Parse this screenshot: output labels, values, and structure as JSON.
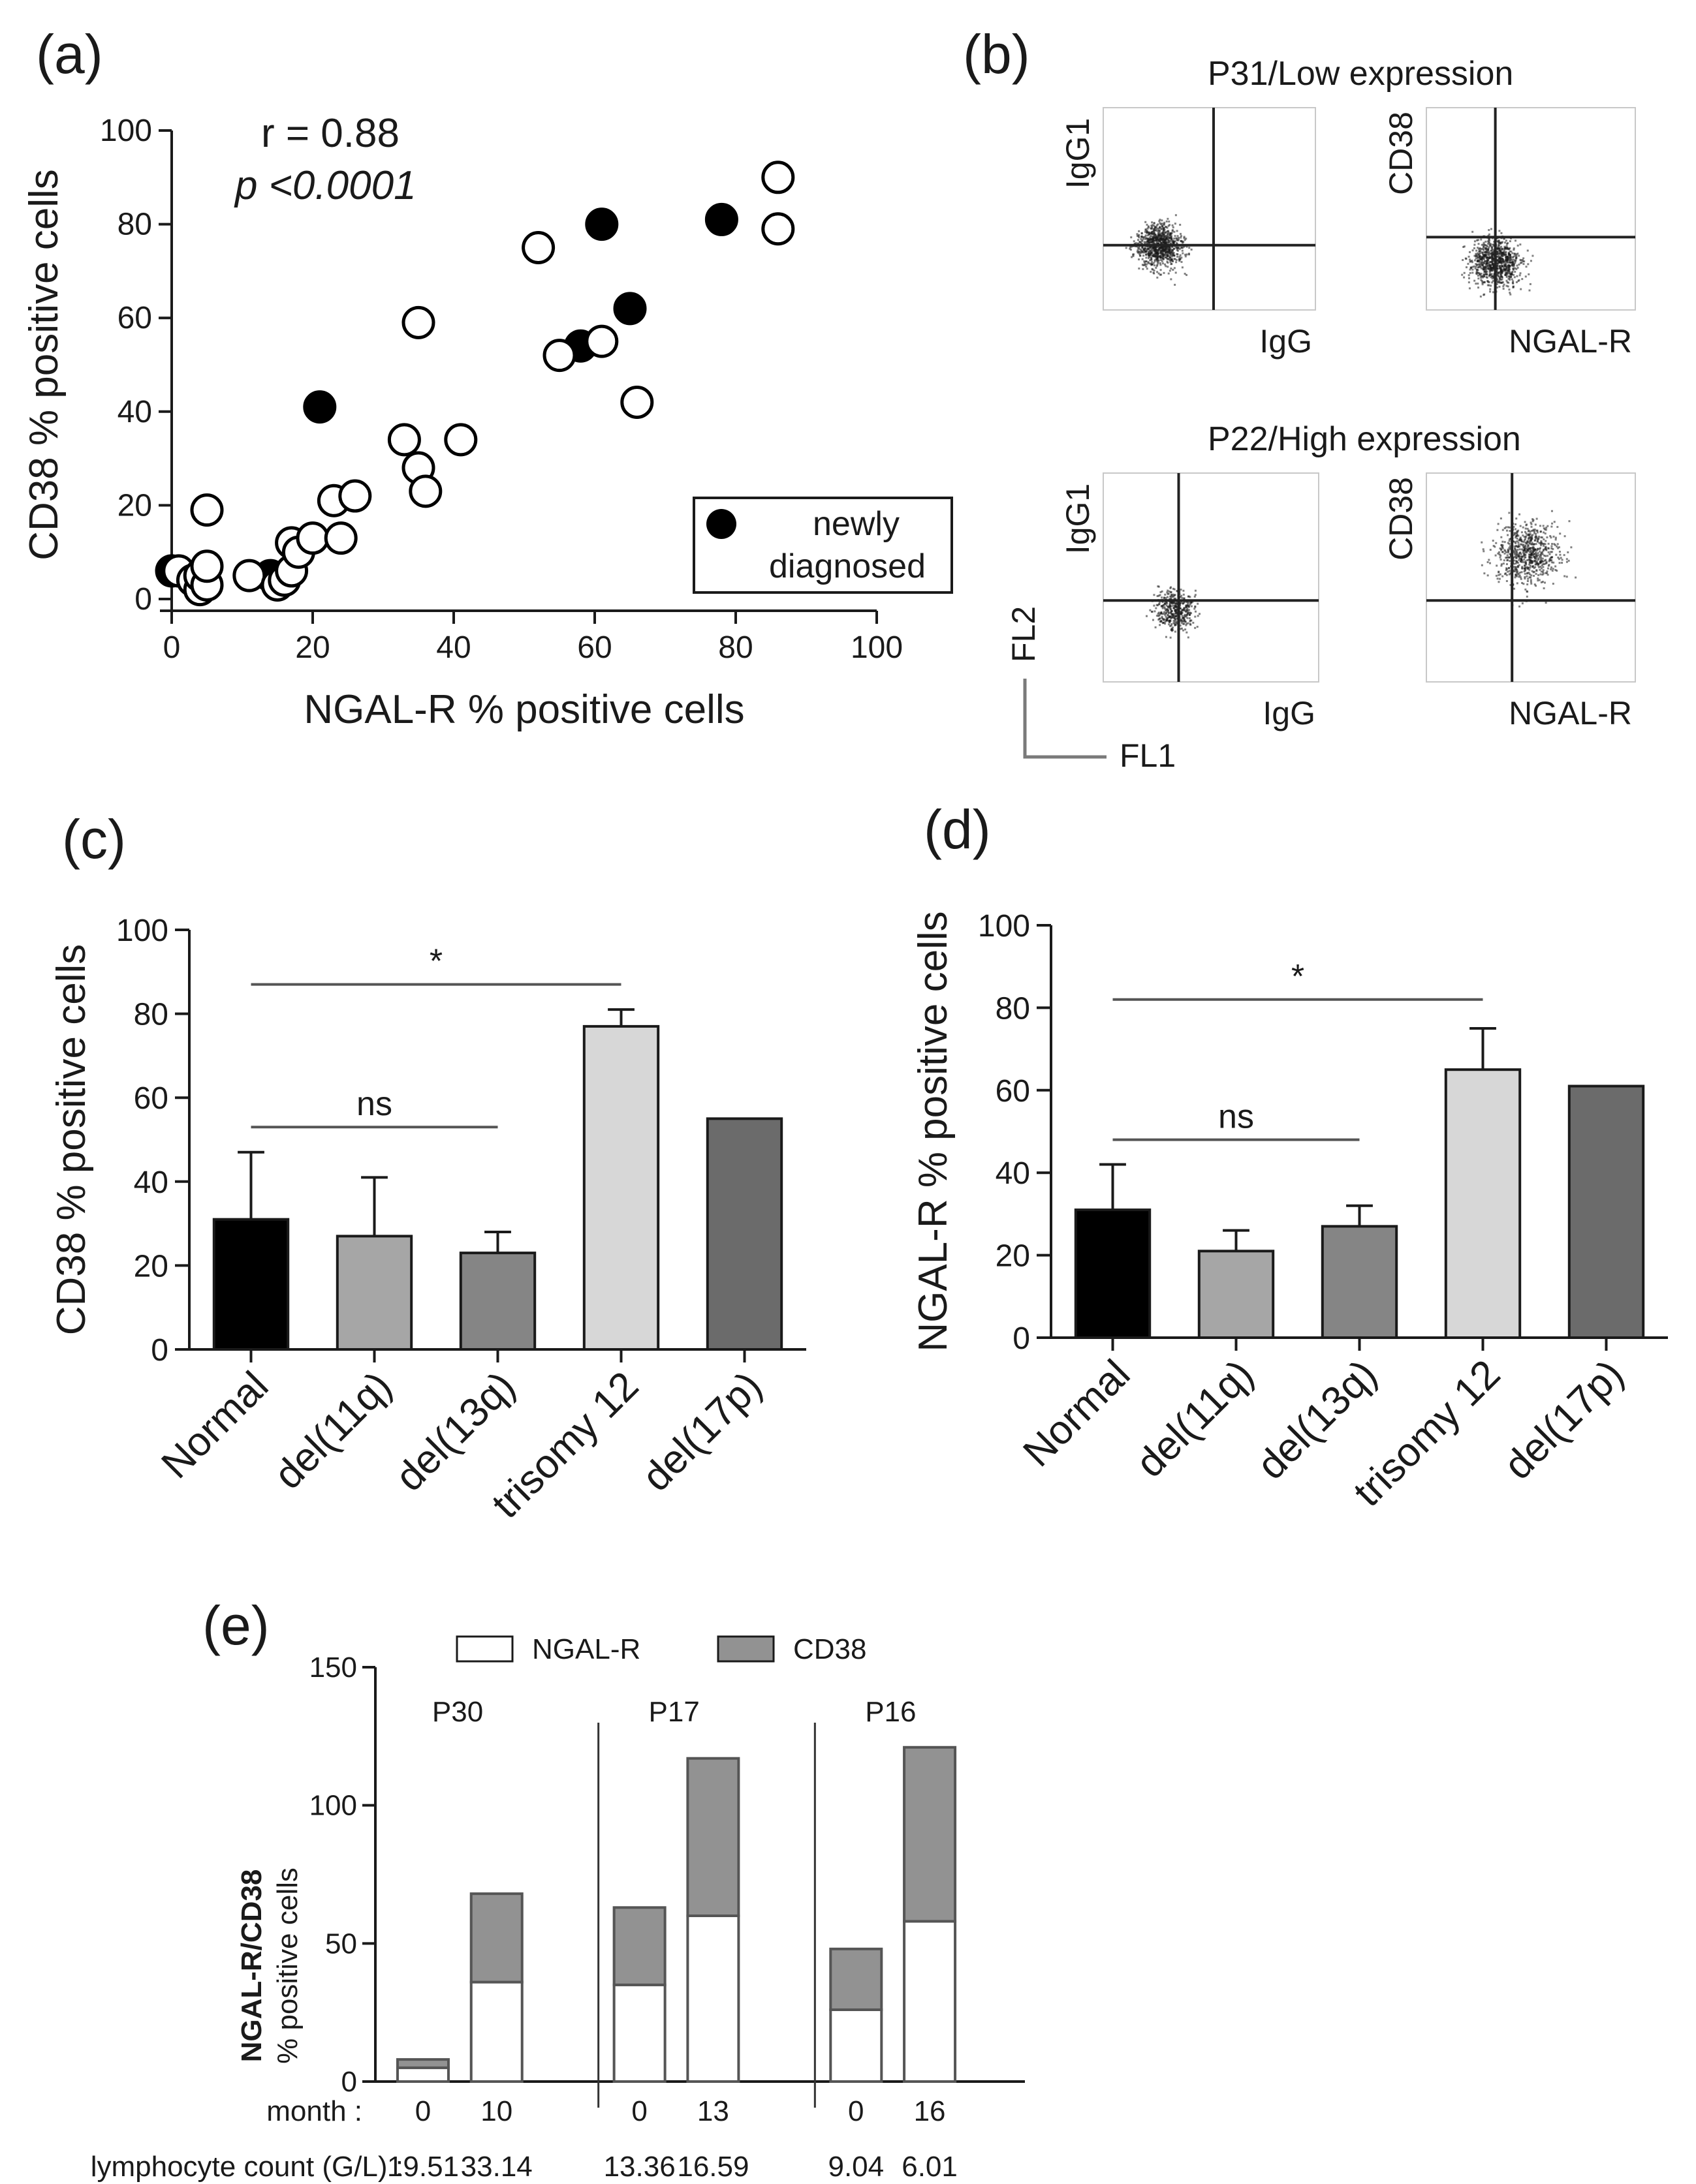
{
  "panels": {
    "a": {
      "label": "(a)"
    },
    "b": {
      "label": "(b)"
    },
    "c": {
      "label": "(c)"
    },
    "d": {
      "label": "(d)"
    },
    "e": {
      "label": "(e)"
    }
  },
  "chart_data": [
    {
      "id": "a",
      "type": "scatter",
      "xlabel": "NGAL-R % positive cells",
      "ylabel": "CD38 % positive cells",
      "xlim": [
        0,
        100
      ],
      "ylim": [
        0,
        100
      ],
      "xticks": [
        0,
        20,
        40,
        60,
        80,
        100
      ],
      "yticks": [
        0,
        20,
        40,
        60,
        80,
        100
      ],
      "annotations": {
        "r": "r = 0.88",
        "p": "p <0.0001"
      },
      "legend": {
        "entry": "newly diagnosed",
        "line1": "newly",
        "line2": "diagnosed",
        "marker": "filled circle",
        "position": "bottom-right"
      },
      "series": [
        {
          "name": "newly diagnosed",
          "filled": true,
          "points": [
            [
              0,
              6
            ],
            [
              14,
              5
            ],
            [
              21,
              41
            ],
            [
              58,
              54
            ],
            [
              61,
              80
            ],
            [
              65,
              62
            ],
            [
              78,
              81
            ]
          ]
        },
        {
          "name": "other",
          "filled": false,
          "points": [
            [
              1,
              6
            ],
            [
              3,
              4
            ],
            [
              4,
              2
            ],
            [
              4,
              5
            ],
            [
              5,
              3
            ],
            [
              5,
              7
            ],
            [
              5,
              19
            ],
            [
              11,
              5
            ],
            [
              15,
              3
            ],
            [
              16,
              4
            ],
            [
              17,
              6
            ],
            [
              17,
              12
            ],
            [
              18,
              10
            ],
            [
              20,
              13
            ],
            [
              23,
              21
            ],
            [
              24,
              13
            ],
            [
              26,
              22
            ],
            [
              33,
              34
            ],
            [
              35,
              59
            ],
            [
              35,
              28
            ],
            [
              36,
              23
            ],
            [
              41,
              34
            ],
            [
              52,
              75
            ],
            [
              55,
              52
            ],
            [
              61,
              55
            ],
            [
              66,
              42
            ],
            [
              86,
              90
            ],
            [
              86,
              79
            ]
          ]
        }
      ]
    },
    {
      "id": "c",
      "type": "bar",
      "ylabel": "CD38 % positive cells",
      "categories": [
        "Normal",
        "del(11q)",
        "del(13q)",
        "trisomy 12",
        "del(17p)"
      ],
      "values": [
        31,
        27,
        23,
        77,
        55
      ],
      "errors": [
        16,
        14,
        5,
        4,
        0
      ],
      "colors": [
        "#000000",
        "#a6a6a6",
        "#858585",
        "#d7d7d7",
        "#6b6b6b"
      ],
      "ylim": [
        0,
        100
      ],
      "yticks": [
        0,
        20,
        40,
        60,
        80,
        100
      ],
      "brackets": [
        {
          "from": "Normal",
          "to": "trisomy 12",
          "level": 87,
          "label": "*"
        },
        {
          "from": "Normal",
          "to": "del(13q)",
          "level": 53,
          "label": "ns"
        }
      ]
    },
    {
      "id": "d",
      "type": "bar",
      "ylabel": "NGAL-R % positive cells",
      "categories": [
        "Normal",
        "del(11q)",
        "del(13q)",
        "trisomy 12",
        "del(17p)"
      ],
      "values": [
        31,
        21,
        27,
        65,
        61
      ],
      "errors": [
        11,
        5,
        5,
        10,
        0
      ],
      "colors": [
        "#000000",
        "#a6a6a6",
        "#858585",
        "#d7d7d7",
        "#6b6b6b"
      ],
      "ylim": [
        0,
        100
      ],
      "yticks": [
        0,
        20,
        40,
        60,
        80,
        100
      ],
      "brackets": [
        {
          "from": "Normal",
          "to": "trisomy 12",
          "level": 82,
          "label": "*"
        },
        {
          "from": "Normal",
          "to": "del(13q)",
          "level": 48,
          "label": "ns"
        }
      ]
    },
    {
      "id": "e",
      "type": "bar",
      "stacked": true,
      "ylabel_line1": "NGAL-R/CD38",
      "ylabel_line2": "% positive cells",
      "ylim": [
        0,
        150
      ],
      "yticks": [
        0,
        50,
        100,
        150
      ],
      "legend": [
        {
          "name": "NGAL-R",
          "color": "#ffffff"
        },
        {
          "name": "CD38",
          "color": "#929292"
        }
      ],
      "month_label": "month :",
      "lymph_label": "lymphocyte count (G/L) :",
      "groups": [
        {
          "patient": "P30",
          "bars": [
            {
              "month": "0",
              "lymph": "19.51",
              "ngalr": 5,
              "cd38": 3
            },
            {
              "month": "10",
              "lymph": "33.14",
              "ngalr": 36,
              "cd38": 32
            }
          ]
        },
        {
          "patient": "P17",
          "bars": [
            {
              "month": "0",
              "lymph": "13.36",
              "ngalr": 35,
              "cd38": 28
            },
            {
              "month": "13",
              "lymph": "16.59",
              "ngalr": 60,
              "cd38": 57
            }
          ]
        },
        {
          "patient": "P16",
          "bars": [
            {
              "month": "0",
              "lymph": "9.04",
              "ngalr": 26,
              "cd38": 22
            },
            {
              "month": "16",
              "lymph": "6.01",
              "ngalr": 58,
              "cd38": 63
            }
          ]
        }
      ]
    }
  ],
  "flow": {
    "low_title": "P31/Low expression",
    "high_title": "P22/High expression",
    "fl2": "FL2",
    "fl1": "FL1",
    "plots": [
      {
        "ylabel": "IgG1",
        "xlabel": "IgG"
      },
      {
        "ylabel": "CD38",
        "xlabel": "NGAL-R"
      },
      {
        "ylabel": "IgG1",
        "xlabel": "IgG"
      },
      {
        "ylabel": "CD38",
        "xlabel": "NGAL-R"
      }
    ]
  }
}
